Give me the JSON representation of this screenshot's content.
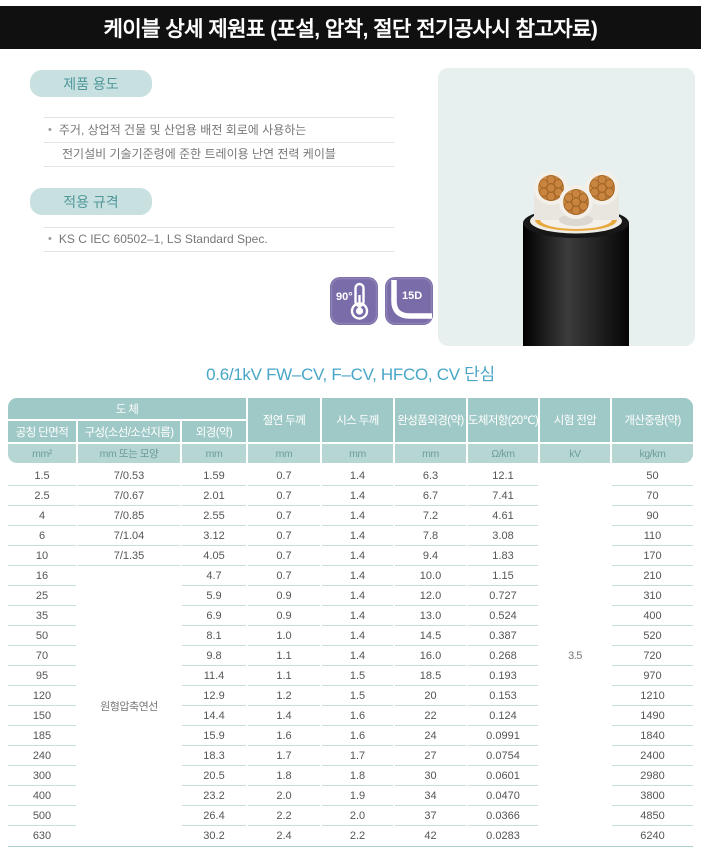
{
  "header": {
    "title": "케이블 상세 제원표 (포설, 압착, 절단 전기공사시 참고자료)"
  },
  "sections": {
    "product_use": {
      "badge": "제품 용도",
      "line1": "주거, 상업적 건물 및 산업용 배전 회로에 사용하는",
      "line2": "전기설비 기술기준령에 준한 트레이용 난연 전력 케이블"
    },
    "standards": {
      "badge": "적용 규격",
      "line1": "KS C IEC 60502–1, LS Standard Spec."
    }
  },
  "icons": {
    "temperature_label": "90°",
    "bend_radius_label": "15D"
  },
  "table_title": "0.6/1kV FW–CV, F–CV, HFCO, CV 단심",
  "table": {
    "group_header": "도 체",
    "columns": [
      "공칭 단면적",
      "구성(소선/소선지름)",
      "외경(약)",
      "절연 두께",
      "시스 두께",
      "완성품외경(약)",
      "도체저항(20℃)",
      "시험 전압",
      "개산중량(약)"
    ],
    "units": [
      "mm²",
      "mm 또는 모양",
      "mm",
      "mm",
      "mm",
      "mm",
      "Ω/km",
      "kV",
      "kg/km"
    ],
    "construction_merged": "원형압축연선",
    "test_voltage_merged": "3.5",
    "rows": [
      [
        "1.5",
        "7/0.53",
        "1.59",
        "0.7",
        "1.4",
        "6.3",
        "12.1",
        "50"
      ],
      [
        "2.5",
        "7/0.67",
        "2.01",
        "0.7",
        "1.4",
        "6.7",
        "7.41",
        "70"
      ],
      [
        "4",
        "7/0.85",
        "2.55",
        "0.7",
        "1.4",
        "7.2",
        "4.61",
        "90"
      ],
      [
        "6",
        "7/1.04",
        "3.12",
        "0.7",
        "1.4",
        "7.8",
        "3.08",
        "110"
      ],
      [
        "10",
        "7/1.35",
        "4.05",
        "0.7",
        "1.4",
        "9.4",
        "1.83",
        "170"
      ],
      [
        "16",
        "",
        "4.7",
        "0.7",
        "1.4",
        "10.0",
        "1.15",
        "210"
      ],
      [
        "25",
        "",
        "5.9",
        "0.9",
        "1.4",
        "12.0",
        "0.727",
        "310"
      ],
      [
        "35",
        "",
        "6.9",
        "0.9",
        "1.4",
        "13.0",
        "0.524",
        "400"
      ],
      [
        "50",
        "",
        "8.1",
        "1.0",
        "1.4",
        "14.5",
        "0.387",
        "520"
      ],
      [
        "70",
        "",
        "9.8",
        "1.1",
        "1.4",
        "16.0",
        "0.268",
        "720"
      ],
      [
        "95",
        "",
        "11.4",
        "1.1",
        "1.5",
        "18.5",
        "0.193",
        "970"
      ],
      [
        "120",
        "",
        "12.9",
        "1.2",
        "1.5",
        "20",
        "0.153",
        "1210"
      ],
      [
        "150",
        "",
        "14.4",
        "1.4",
        "1.6",
        "22",
        "0.124",
        "1490"
      ],
      [
        "185",
        "",
        "15.9",
        "1.6",
        "1.6",
        "24",
        "0.0991",
        "1840"
      ],
      [
        "240",
        "",
        "18.3",
        "1.7",
        "1.7",
        "27",
        "0.0754",
        "2400"
      ],
      [
        "300",
        "",
        "20.5",
        "1.8",
        "1.8",
        "30",
        "0.0601",
        "2980"
      ],
      [
        "400",
        "",
        "23.2",
        "2.0",
        "1.9",
        "34",
        "0.0470",
        "3800"
      ],
      [
        "500",
        "",
        "26.4",
        "2.2",
        "2.0",
        "37",
        "0.0366",
        "4850"
      ],
      [
        "630",
        "",
        "30.2",
        "2.4",
        "2.2",
        "42",
        "0.0283",
        "6240"
      ]
    ]
  },
  "colors": {
    "header_bar": "#101010",
    "badge_bg": "#c9e0e0",
    "badge_text": "#4f989a",
    "table_header_bg": "#9fc9c6",
    "table_units_bg": "#b5d6d3",
    "table_title_text": "#48a6c6",
    "divider": "#c5dfdd",
    "icon_purple": "#7a6ca8",
    "panel_bg": "#e7f0ee",
    "copper": "#c98440"
  }
}
